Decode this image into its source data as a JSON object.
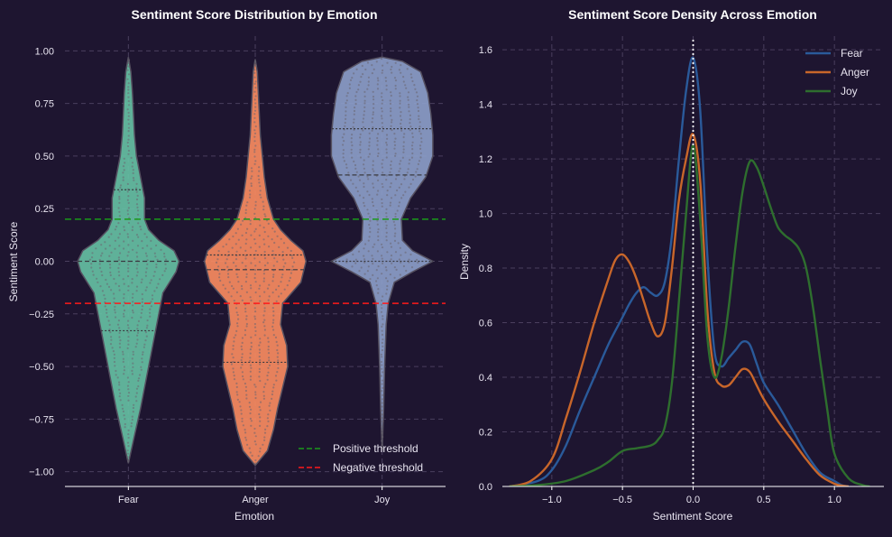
{
  "chart_data": [
    {
      "type": "violin",
      "title": "Sentiment Score Distribution by Emotion",
      "xlabel": "Emotion",
      "ylabel": "Sentiment Score",
      "categories": [
        "Fear",
        "Anger",
        "Joy"
      ],
      "ylim": [
        -1.07,
        1.07
      ],
      "yticks": [
        -1.0,
        -0.75,
        -0.5,
        -0.25,
        0.0,
        0.25,
        0.5,
        0.75,
        1.0
      ],
      "ytick_labels": [
        "−1.00",
        "−0.75",
        "−0.50",
        "−0.25",
        "0.00",
        "0.25",
        "0.50",
        "0.75",
        "1.00"
      ],
      "grid": true,
      "violins": [
        {
          "name": "Fear",
          "color": "#66c2a5",
          "min": -0.96,
          "max": 0.97,
          "quartiles": [
            -0.33,
            0.0,
            0.34
          ],
          "profile": [
            [
              -0.96,
              0.0
            ],
            [
              -0.85,
              0.05
            ],
            [
              -0.7,
              0.12
            ],
            [
              -0.5,
              0.2
            ],
            [
              -0.35,
              0.26
            ],
            [
              -0.25,
              0.3
            ],
            [
              -0.15,
              0.34
            ],
            [
              -0.05,
              0.47
            ],
            [
              0.0,
              0.5
            ],
            [
              0.05,
              0.45
            ],
            [
              0.1,
              0.3
            ],
            [
              0.15,
              0.2
            ],
            [
              0.2,
              0.16
            ],
            [
              0.3,
              0.16
            ],
            [
              0.4,
              0.12
            ],
            [
              0.5,
              0.08
            ],
            [
              0.6,
              0.06
            ],
            [
              0.7,
              0.05
            ],
            [
              0.8,
              0.04
            ],
            [
              0.9,
              0.025
            ],
            [
              0.97,
              0.0
            ]
          ]
        },
        {
          "name": "Anger",
          "color": "#fc8d62",
          "min": -0.97,
          "max": 0.96,
          "quartiles": [
            -0.48,
            -0.04,
            0.03
          ],
          "profile": [
            [
              -0.97,
              0.0
            ],
            [
              -0.9,
              0.12
            ],
            [
              -0.8,
              0.18
            ],
            [
              -0.7,
              0.22
            ],
            [
              -0.6,
              0.27
            ],
            [
              -0.5,
              0.32
            ],
            [
              -0.4,
              0.31
            ],
            [
              -0.3,
              0.25
            ],
            [
              -0.2,
              0.27
            ],
            [
              -0.1,
              0.45
            ],
            [
              0.0,
              0.5
            ],
            [
              0.05,
              0.47
            ],
            [
              0.1,
              0.35
            ],
            [
              0.15,
              0.25
            ],
            [
              0.2,
              0.18
            ],
            [
              0.3,
              0.12
            ],
            [
              0.4,
              0.09
            ],
            [
              0.5,
              0.07
            ],
            [
              0.6,
              0.05
            ],
            [
              0.7,
              0.04
            ],
            [
              0.8,
              0.03
            ],
            [
              0.9,
              0.02
            ],
            [
              0.96,
              0.0
            ]
          ]
        },
        {
          "name": "Joy",
          "color": "#8da0cb",
          "min": -0.9,
          "max": 0.97,
          "quartiles": [
            0.0,
            0.41,
            0.63
          ],
          "profile": [
            [
              -0.9,
              0.0
            ],
            [
              -0.7,
              0.015
            ],
            [
              -0.5,
              0.025
            ],
            [
              -0.3,
              0.04
            ],
            [
              -0.2,
              0.06
            ],
            [
              -0.1,
              0.12
            ],
            [
              -0.05,
              0.3
            ],
            [
              0.0,
              0.5
            ],
            [
              0.05,
              0.3
            ],
            [
              0.1,
              0.2
            ],
            [
              0.2,
              0.19
            ],
            [
              0.3,
              0.28
            ],
            [
              0.4,
              0.43
            ],
            [
              0.5,
              0.5
            ],
            [
              0.6,
              0.5
            ],
            [
              0.7,
              0.48
            ],
            [
              0.8,
              0.45
            ],
            [
              0.9,
              0.38
            ],
            [
              0.95,
              0.2
            ],
            [
              0.97,
              0.0
            ]
          ]
        }
      ],
      "thresholds": [
        {
          "name": "Positive threshold",
          "value": 0.2,
          "color": "#1a9a1a"
        },
        {
          "name": "Negative threshold",
          "value": -0.2,
          "color": "#ff1a1a"
        }
      ],
      "legend_position": "bottom-right"
    },
    {
      "type": "line",
      "title": "Sentiment Score Density  Across Emotion",
      "xlabel": "Sentiment Score",
      "ylabel": "Density",
      "xlim": [
        -1.35,
        1.35
      ],
      "ylim": [
        0,
        1.65
      ],
      "xticks": [
        -1.0,
        -0.5,
        0.0,
        0.5,
        1.0
      ],
      "xtick_labels": [
        "−1.0",
        "−0.5",
        "0.0",
        "0.5",
        "1.0"
      ],
      "yticks": [
        0.0,
        0.2,
        0.4,
        0.6,
        0.8,
        1.0,
        1.2,
        1.4,
        1.6
      ],
      "ytick_labels": [
        "0.0",
        "0.2",
        "0.4",
        "0.6",
        "0.8",
        "1.0",
        "1.2",
        "1.4",
        "1.6"
      ],
      "vline": 0.0,
      "grid": true,
      "legend_position": "top-right",
      "series": [
        {
          "name": "Fear",
          "color": "#2a5a9a",
          "x": [
            -1.3,
            -1.1,
            -1.0,
            -0.9,
            -0.8,
            -0.7,
            -0.6,
            -0.5,
            -0.45,
            -0.4,
            -0.35,
            -0.3,
            -0.25,
            -0.2,
            -0.15,
            -0.1,
            -0.05,
            0.0,
            0.05,
            0.1,
            0.15,
            0.2,
            0.25,
            0.3,
            0.35,
            0.4,
            0.45,
            0.5,
            0.6,
            0.7,
            0.8,
            0.9,
            1.0,
            1.05,
            1.1
          ],
          "y": [
            0.0,
            0.02,
            0.06,
            0.15,
            0.28,
            0.4,
            0.52,
            0.62,
            0.67,
            0.71,
            0.73,
            0.71,
            0.7,
            0.75,
            0.92,
            1.2,
            1.45,
            1.57,
            1.38,
            0.85,
            0.5,
            0.44,
            0.47,
            0.5,
            0.53,
            0.52,
            0.45,
            0.38,
            0.3,
            0.21,
            0.12,
            0.05,
            0.02,
            0.005,
            0.0
          ]
        },
        {
          "name": "Anger",
          "color": "#c8662a",
          "x": [
            -1.3,
            -1.15,
            -1.0,
            -0.9,
            -0.8,
            -0.7,
            -0.6,
            -0.55,
            -0.5,
            -0.45,
            -0.4,
            -0.35,
            -0.3,
            -0.25,
            -0.2,
            -0.15,
            -0.1,
            -0.05,
            0.0,
            0.05,
            0.1,
            0.15,
            0.2,
            0.25,
            0.3,
            0.35,
            0.4,
            0.45,
            0.5,
            0.6,
            0.7,
            0.8,
            0.9,
            1.0,
            1.05,
            1.1
          ],
          "y": [
            0.0,
            0.02,
            0.1,
            0.25,
            0.42,
            0.6,
            0.76,
            0.83,
            0.85,
            0.82,
            0.76,
            0.68,
            0.6,
            0.55,
            0.6,
            0.8,
            1.05,
            1.2,
            1.29,
            1.12,
            0.65,
            0.42,
            0.37,
            0.37,
            0.4,
            0.43,
            0.42,
            0.37,
            0.32,
            0.24,
            0.17,
            0.1,
            0.04,
            0.01,
            0.003,
            0.0
          ]
        },
        {
          "name": "Joy",
          "color": "#2e6e2e",
          "x": [
            -1.3,
            -1.1,
            -0.9,
            -0.7,
            -0.6,
            -0.5,
            -0.4,
            -0.3,
            -0.25,
            -0.2,
            -0.15,
            -0.1,
            -0.05,
            0.0,
            0.05,
            0.1,
            0.15,
            0.2,
            0.25,
            0.3,
            0.35,
            0.4,
            0.45,
            0.5,
            0.55,
            0.6,
            0.65,
            0.7,
            0.75,
            0.8,
            0.85,
            0.9,
            0.95,
            1.0,
            1.1,
            1.2,
            1.25
          ],
          "y": [
            0.0,
            0.005,
            0.02,
            0.06,
            0.09,
            0.13,
            0.14,
            0.15,
            0.17,
            0.22,
            0.38,
            0.68,
            1.0,
            1.25,
            0.98,
            0.55,
            0.4,
            0.47,
            0.65,
            0.88,
            1.08,
            1.19,
            1.17,
            1.1,
            1.02,
            0.95,
            0.92,
            0.9,
            0.87,
            0.8,
            0.65,
            0.46,
            0.28,
            0.12,
            0.03,
            0.005,
            0.0
          ]
        }
      ]
    }
  ]
}
